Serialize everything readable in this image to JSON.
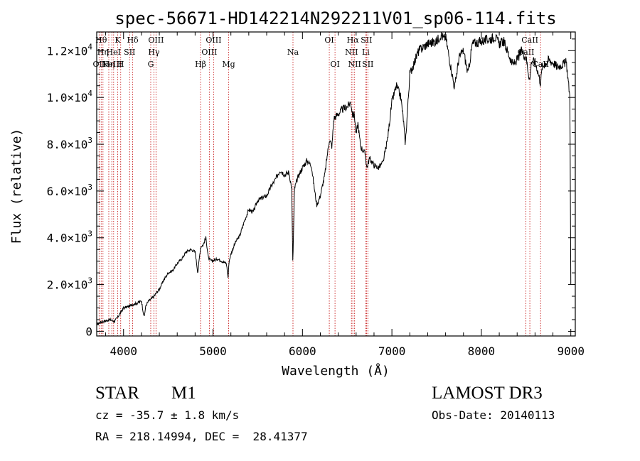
{
  "chart_data": {
    "type": "line",
    "title": "spec-56671-HD142214N292211V01_sp06-114.fits",
    "xlabel": "Wavelength (Å)",
    "ylabel": "Flux (relative)",
    "xlim": [
      3700,
      9050
    ],
    "ylim": [
      -200,
      12800
    ],
    "x_ticks": [
      {
        "value": 4000,
        "label": "4000"
      },
      {
        "value": 5000,
        "label": "5000"
      },
      {
        "value": 6000,
        "label": "6000"
      },
      {
        "value": 7000,
        "label": "7000"
      },
      {
        "value": 8000,
        "label": "8000"
      },
      {
        "value": 9000,
        "label": "9000"
      }
    ],
    "y_ticks": [
      {
        "value": 0,
        "mantissa": "0",
        "exponent": ""
      },
      {
        "value": 2000,
        "mantissa": "2.0×10",
        "exponent": "3"
      },
      {
        "value": 4000,
        "mantissa": "4.0×10",
        "exponent": "3"
      },
      {
        "value": 6000,
        "mantissa": "6.0×10",
        "exponent": "3"
      },
      {
        "value": 8000,
        "mantissa": "8.0×10",
        "exponent": "3"
      },
      {
        "value": 10000,
        "mantissa": "1.0×10",
        "exponent": "4"
      },
      {
        "value": 12000,
        "mantissa": "1.2×10",
        "exponent": "4"
      }
    ],
    "series": [
      {
        "x": [
          3700,
          3750,
          3800,
          3850,
          3900,
          3950,
          4000,
          4050,
          4100,
          4150,
          4200,
          4230,
          4250,
          4280,
          4300,
          4340,
          4380,
          4400,
          4450,
          4500,
          4550,
          4600,
          4650,
          4700,
          4750,
          4800,
          4830,
          4861,
          4890,
          4920,
          4950,
          4990,
          5050,
          5100,
          5150,
          5168,
          5180,
          5200,
          5250,
          5300,
          5350,
          5400,
          5450,
          5500,
          5550,
          5600,
          5650,
          5700,
          5750,
          5800,
          5850,
          5880,
          5893,
          5910,
          5950,
          6000,
          6050,
          6100,
          6130,
          6160,
          6200,
          6250,
          6300,
          6330,
          6350,
          6400,
          6450,
          6500,
          6540,
          6563,
          6580,
          6600,
          6620,
          6650,
          6700,
          6720,
          6750,
          6800,
          6850,
          6900,
          6950,
          7000,
          7050,
          7100,
          7130,
          7150,
          7200,
          7250,
          7300,
          7400,
          7500,
          7550,
          7580,
          7600,
          7650,
          7700,
          7750,
          7800,
          7850,
          7900,
          8000,
          8100,
          8150,
          8200,
          8250,
          8300,
          8350,
          8400,
          8450,
          8500,
          8542,
          8560,
          8600,
          8620,
          8662,
          8680,
          8700,
          8750,
          8800,
          8850,
          8900,
          8950,
          8990,
          9000
        ],
        "y": [
          300,
          400,
          450,
          500,
          420,
          700,
          1000,
          1050,
          1150,
          1200,
          1300,
          600,
          1100,
          1300,
          1350,
          1500,
          1700,
          1800,
          2200,
          2500,
          2600,
          2900,
          3100,
          3400,
          3500,
          3400,
          2500,
          3600,
          3700,
          4000,
          3100,
          3000,
          3100,
          3000,
          2900,
          2300,
          3000,
          3300,
          3800,
          4100,
          4700,
          5200,
          5100,
          5600,
          5700,
          5800,
          6200,
          6500,
          6900,
          6700,
          6800,
          6100,
          2800,
          6100,
          6600,
          7000,
          7300,
          7100,
          6200,
          5400,
          5800,
          6700,
          8200,
          7900,
          9100,
          9300,
          9500,
          9600,
          9800,
          9200,
          9300,
          8400,
          8900,
          7900,
          7600,
          7000,
          7400,
          7100,
          7000,
          7200,
          8200,
          9800,
          10500,
          10000,
          9000,
          8000,
          11000,
          11500,
          12000,
          12300,
          12400,
          12700,
          12500,
          12600,
          11500,
          10400,
          11700,
          12000,
          11000,
          12300,
          12400,
          12500,
          12600,
          12300,
          12400,
          11900,
          11400,
          11600,
          12000,
          11700,
          10700,
          11600,
          11500,
          11300,
          10600,
          11300,
          11400,
          11600,
          11500,
          11300,
          11400,
          11500,
          10000,
          2000
        ]
      }
    ],
    "lines": [
      {
        "wl": 3727,
        "label": "OII",
        "row": 2
      },
      {
        "wl": 3750,
        "label": "Hθ",
        "row": 0
      },
      {
        "wl": 3770,
        "label": "Hη",
        "row": 1
      },
      {
        "wl": 3835,
        "label": "Hη",
        "row": 2
      },
      {
        "wl": 3869,
        "label": "NeIII",
        "row": 2
      },
      {
        "wl": 3889,
        "label": "HeI",
        "row": 1
      },
      {
        "wl": 3934,
        "label": "K",
        "row": 0
      },
      {
        "wl": 3968,
        "label": "H",
        "row": 2
      },
      {
        "wl": 4068,
        "label": "SII",
        "row": 1
      },
      {
        "wl": 4102,
        "label": "Hδ",
        "row": 0
      },
      {
        "wl": 4304,
        "label": "G",
        "row": 2
      },
      {
        "wl": 4340,
        "label": "Hγ",
        "row": 1
      },
      {
        "wl": 4363,
        "label": "OIII",
        "row": 0
      },
      {
        "wl": 4861,
        "label": "Hβ",
        "row": 2
      },
      {
        "wl": 4959,
        "label": "OIII",
        "row": 1
      },
      {
        "wl": 5007,
        "label": "OIII",
        "row": 0
      },
      {
        "wl": 5175,
        "label": "Mg",
        "row": 2
      },
      {
        "wl": 5894,
        "label": "Na",
        "row": 1
      },
      {
        "wl": 6300,
        "label": "OI",
        "row": 0
      },
      {
        "wl": 6364,
        "label": "OI",
        "row": 2
      },
      {
        "wl": 6548,
        "label": "NII",
        "row": 1
      },
      {
        "wl": 6563,
        "label": "Hα",
        "row": 0
      },
      {
        "wl": 6583,
        "label": "NII",
        "row": 2
      },
      {
        "wl": 6708,
        "label": "Li",
        "row": 1
      },
      {
        "wl": 6716,
        "label": "SII",
        "row": 0
      },
      {
        "wl": 6731,
        "label": "SII",
        "row": 2
      },
      {
        "wl": 8498,
        "label": "CaII",
        "row": 1
      },
      {
        "wl": 8542,
        "label": "CaII",
        "row": 0
      },
      {
        "wl": 8662,
        "label": "CaII",
        "row": 2
      }
    ]
  },
  "info": {
    "object_class": "STAR",
    "subclass": "M1",
    "cz": "cz = -35.7 ± 1.8 km/s",
    "coords": "RA = 218.14994, DEC =  28.41377",
    "survey": "LAMOST DR3",
    "obs_date": "Obs-Date: 20140113"
  }
}
